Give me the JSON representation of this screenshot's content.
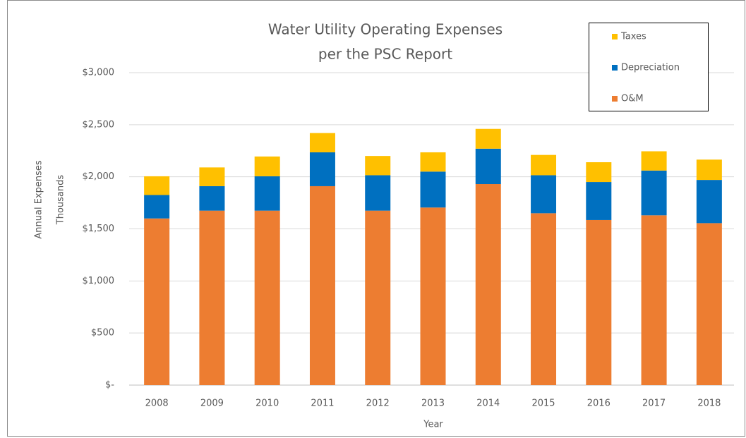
{
  "chart_data": {
    "type": "stacked_bar",
    "title": [
      "Water Utility Operating Expenses",
      "per the PSC Report"
    ],
    "ylabel": [
      "Annual Expenses",
      "Thousands"
    ],
    "xlabel": "Year",
    "categories": [
      "2008",
      "2009",
      "2010",
      "2011",
      "2012",
      "2013",
      "2014",
      "2015",
      "2016",
      "2017",
      "2018"
    ],
    "series": [
      {
        "name": "O&M",
        "color": "#ed7d31",
        "values": [
          1600,
          1675,
          1675,
          1910,
          1675,
          1705,
          1930,
          1650,
          1585,
          1630,
          1555
        ]
      },
      {
        "name": "Depreciation",
        "color": "#0070c0",
        "values": [
          225,
          235,
          330,
          325,
          340,
          345,
          340,
          365,
          365,
          430,
          415
        ]
      },
      {
        "name": "Taxes",
        "color": "#ffc000",
        "values": [
          180,
          180,
          190,
          185,
          185,
          185,
          190,
          195,
          190,
          185,
          195
        ]
      }
    ],
    "ylim": [
      0,
      3000
    ],
    "yticks": [
      {
        "value": 0,
        "label": "$-"
      },
      {
        "value": 500,
        "label": "$500"
      },
      {
        "value": 1000,
        "label": "$1,000"
      },
      {
        "value": 1500,
        "label": "$1,500"
      },
      {
        "value": 2000,
        "label": "$2,000"
      },
      {
        "value": 2500,
        "label": "$2,500"
      },
      {
        "value": 3000,
        "label": "$3,000"
      }
    ],
    "grid": true,
    "legend": "top-right"
  }
}
